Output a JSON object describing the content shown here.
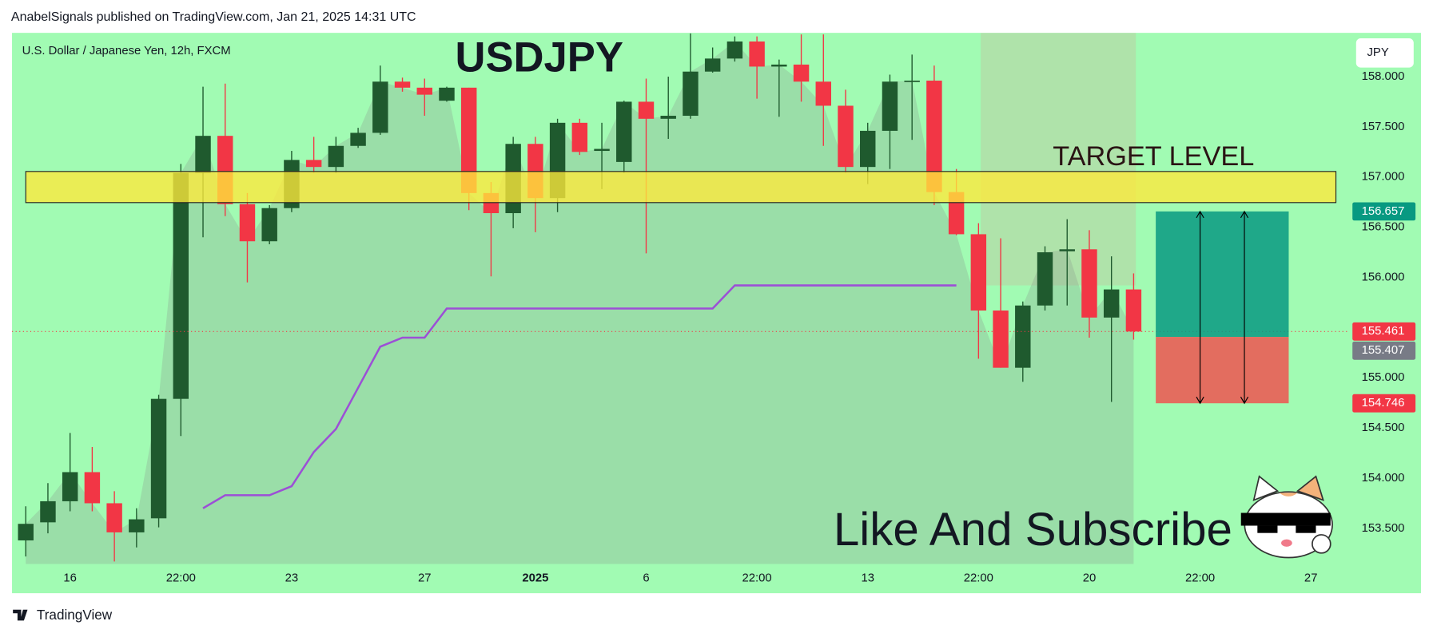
{
  "header": {
    "text": "AnabelSignals published on TradingView.com, Jan 21, 2025 14:31 UTC"
  },
  "footer": {
    "logo": "TradingView"
  },
  "chart_data": {
    "type": "candlestick",
    "title": "USDJPY",
    "subtitle": "U.S. Dollar / Japanese Yen, 12h, FXCM",
    "currency": "JPY",
    "up_color": "#1f5a2e",
    "down_color": "#f23645",
    "open": [
      153.38,
      153.56,
      153.77,
      154.06,
      153.75,
      153.46,
      153.6,
      154.79,
      157.04,
      157.41,
      156.73,
      156.36,
      156.69,
      157.17,
      157.1,
      157.31,
      157.44,
      157.95,
      157.89,
      157.76,
      157.89,
      156.84,
      156.64,
      157.33,
      156.79,
      157.54,
      157.26,
      157.15,
      157.75,
      157.58,
      157.61,
      158.05,
      158.18,
      158.35,
      158.1,
      158.12,
      157.95,
      157.71,
      157.1,
      157.46,
      157.95,
      157.96,
      156.85,
      156.43,
      155.67,
      155.1,
      155.72,
      156.26,
      156.28,
      155.6,
      155.88
    ],
    "high": [
      153.72,
      153.95,
      154.45,
      154.31,
      153.87,
      153.7,
      154.83,
      157.13,
      157.9,
      157.93,
      156.84,
      156.72,
      157.26,
      157.4,
      157.4,
      157.49,
      158.11,
      157.99,
      157.98,
      157.9,
      157.89,
      156.95,
      157.4,
      157.4,
      157.58,
      157.58,
      157.54,
      157.76,
      157.98,
      158.0,
      158.43,
      158.29,
      158.4,
      158.4,
      158.17,
      158.42,
      158.42,
      157.87,
      157.54,
      158.02,
      158.22,
      158.11,
      157.08,
      156.54,
      156.39,
      155.76,
      156.31,
      156.58,
      156.47,
      156.21,
      156.04
    ],
    "low": [
      153.22,
      153.45,
      153.67,
      153.67,
      153.17,
      153.31,
      153.51,
      154.42,
      156.4,
      156.61,
      155.95,
      156.33,
      156.65,
      157.04,
      157.04,
      157.29,
      157.42,
      157.85,
      157.61,
      157.75,
      156.67,
      156.01,
      156.49,
      156.45,
      156.65,
      157.22,
      156.88,
      157.04,
      156.24,
      157.38,
      157.58,
      158.04,
      158.15,
      157.78,
      157.6,
      157.75,
      157.31,
      157.04,
      156.93,
      157.08,
      157.37,
      156.72,
      156.42,
      155.19,
      155.1,
      154.96,
      155.67,
      155.72,
      155.4,
      154.76,
      155.38
    ],
    "close": [
      153.545,
      153.77,
      154.06,
      153.75,
      153.46,
      153.59,
      154.79,
      157.04,
      157.41,
      156.73,
      156.36,
      156.69,
      157.17,
      157.1,
      157.31,
      157.44,
      157.95,
      157.89,
      157.82,
      157.89,
      156.84,
      156.64,
      157.33,
      156.79,
      157.54,
      157.25,
      157.28,
      157.75,
      157.58,
      157.61,
      158.05,
      158.18,
      158.35,
      158.1,
      158.12,
      157.95,
      157.71,
      157.1,
      157.46,
      157.95,
      157.96,
      156.85,
      156.43,
      155.67,
      155.1,
      155.72,
      156.25,
      156.28,
      155.6,
      155.88,
      155.461
    ],
    "indicator": {
      "color": "#9c4fd6",
      "values": [
        null,
        null,
        null,
        null,
        null,
        null,
        null,
        null,
        153.7,
        153.83,
        153.83,
        153.83,
        153.92,
        154.26,
        154.49,
        154.9,
        155.31,
        155.4,
        155.4,
        155.69,
        155.69,
        155.69,
        155.69,
        155.69,
        155.69,
        155.69,
        155.69,
        155.69,
        155.69,
        155.69,
        155.69,
        155.69,
        155.92,
        155.92,
        155.92,
        155.92,
        155.92,
        155.92,
        155.92,
        155.92,
        155.92,
        155.92,
        155.92,
        null,
        null,
        null,
        null,
        null,
        null,
        null,
        null
      ]
    },
    "xlim": [
      -0.62,
      59.67
    ],
    "ylim": [
      153.145,
      158.436
    ],
    "xticks": [
      {
        "value": 2,
        "label": "16"
      },
      {
        "value": 7,
        "label": "22:00"
      },
      {
        "value": 12,
        "label": "23"
      },
      {
        "value": 18,
        "label": "27"
      },
      {
        "value": 23,
        "label": "2025"
      },
      {
        "value": 28,
        "label": "6"
      },
      {
        "value": 33,
        "label": "22:00"
      },
      {
        "value": 38,
        "label": "13"
      },
      {
        "value": 43,
        "label": "22:00"
      },
      {
        "value": 48,
        "label": "20"
      },
      {
        "value": 53,
        "label": "22:00"
      },
      {
        "value": 58,
        "label": "27"
      }
    ],
    "yticks": [
      {
        "value": 153.5,
        "label": "153.500"
      },
      {
        "value": 154,
        "label": "154.000"
      },
      {
        "value": 154.5,
        "label": "154.500"
      },
      {
        "value": 155,
        "label": "155.000"
      },
      {
        "value": 156,
        "label": "156.000"
      },
      {
        "value": 156.5,
        "label": "156.500"
      },
      {
        "value": 157,
        "label": "157.000"
      },
      {
        "value": 157.5,
        "label": "157.500"
      },
      {
        "value": 158,
        "label": "158.000"
      }
    ],
    "target_zone": {
      "label": "TARGET LEVEL",
      "x": [
        0,
        59.13
      ],
      "y": [
        156.745,
        157.055
      ],
      "color": "#ffe93b"
    },
    "time_zone": {
      "x": [
        43.1,
        50.1
      ],
      "y": [
        155.92,
        158.436
      ]
    },
    "position": {
      "x": [
        51,
        57
      ],
      "target": 156.657,
      "entry": 155.407,
      "stop": 154.746,
      "profit_color": "#089981",
      "loss_color": "#ef5350"
    },
    "price_labels": [
      {
        "value": 156.657,
        "color": "#089981"
      },
      {
        "value": 155.461,
        "color": "#f23645"
      },
      {
        "value": 155.407,
        "color": "#787b86"
      },
      {
        "value": 154.746,
        "color": "#f23645"
      }
    ],
    "annotation": "Like And Subscribe"
  }
}
